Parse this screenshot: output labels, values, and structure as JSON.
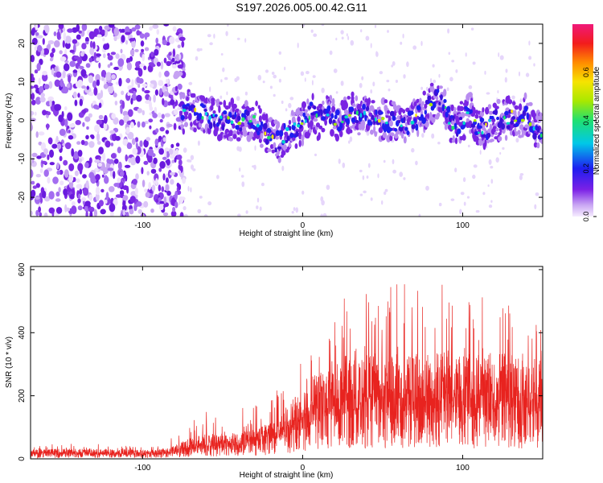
{
  "title": "S197.2026.005.00.42.G11",
  "chart_data": [
    {
      "type": "heatmap",
      "xlabel": "Height of straight line (km)",
      "ylabel": "Frequency (Hz)",
      "xlim": [
        -170,
        150
      ],
      "ylim": [
        -25,
        25
      ],
      "xticks": [
        -100,
        0,
        100
      ],
      "yticks": [
        -20,
        -10,
        0,
        10,
        20
      ],
      "colorbar": {
        "label": "Normalized spectral amplitude",
        "range": [
          0.0,
          0.8
        ],
        "ticks": [
          0.0,
          0.2,
          0.4,
          0.6
        ]
      },
      "noise_region_x": [
        -170,
        -78
      ],
      "signal_centerline": {
        "x": [
          -78,
          -70,
          -60,
          -50,
          -40,
          -30,
          -25,
          -20,
          -15,
          -10,
          -5,
          0,
          5,
          10,
          15,
          20,
          25,
          30,
          40,
          50,
          60,
          65,
          70,
          75,
          80,
          85,
          90,
          95,
          100,
          105,
          110,
          115,
          120,
          125,
          130,
          135,
          140,
          145,
          150
        ],
        "y": [
          1,
          3,
          1,
          0,
          0,
          0,
          -2,
          -4,
          -6,
          -3,
          -2,
          -1,
          2,
          0,
          2,
          0,
          0,
          2,
          1,
          0,
          0,
          -1,
          0,
          2,
          4,
          6,
          2,
          -2,
          0,
          2,
          -2,
          -2,
          0,
          0,
          1,
          0,
          2,
          -2,
          -4
        ]
      }
    },
    {
      "type": "line",
      "xlabel": "Height of straight line (km)",
      "ylabel": "SNR (10 * v/v)",
      "xlim": [
        -170,
        150
      ],
      "ylim": [
        0,
        610
      ],
      "xticks": [
        -100,
        0,
        100
      ],
      "yticks": [
        0,
        200,
        400,
        600
      ],
      "color": "#e8231f",
      "envelope": {
        "x": [
          -170,
          -140,
          -110,
          -90,
          -80,
          -70,
          -60,
          -50,
          -40,
          -30,
          -20,
          -10,
          0,
          10,
          20,
          30,
          40,
          50,
          60,
          70,
          80,
          90,
          100,
          110,
          120,
          130,
          140,
          150
        ],
        "mean": [
          20,
          22,
          20,
          20,
          28,
          45,
          55,
          50,
          55,
          65,
          80,
          110,
          150,
          180,
          200,
          210,
          220,
          220,
          225,
          225,
          230,
          230,
          225,
          220,
          225,
          225,
          220,
          210
        ],
        "peak": [
          45,
          50,
          45,
          40,
          75,
          130,
          150,
          120,
          160,
          180,
          200,
          250,
          330,
          350,
          450,
          560,
          530,
          550,
          560,
          580,
          590,
          600,
          550,
          540,
          560,
          570,
          540,
          520
        ]
      }
    }
  ]
}
